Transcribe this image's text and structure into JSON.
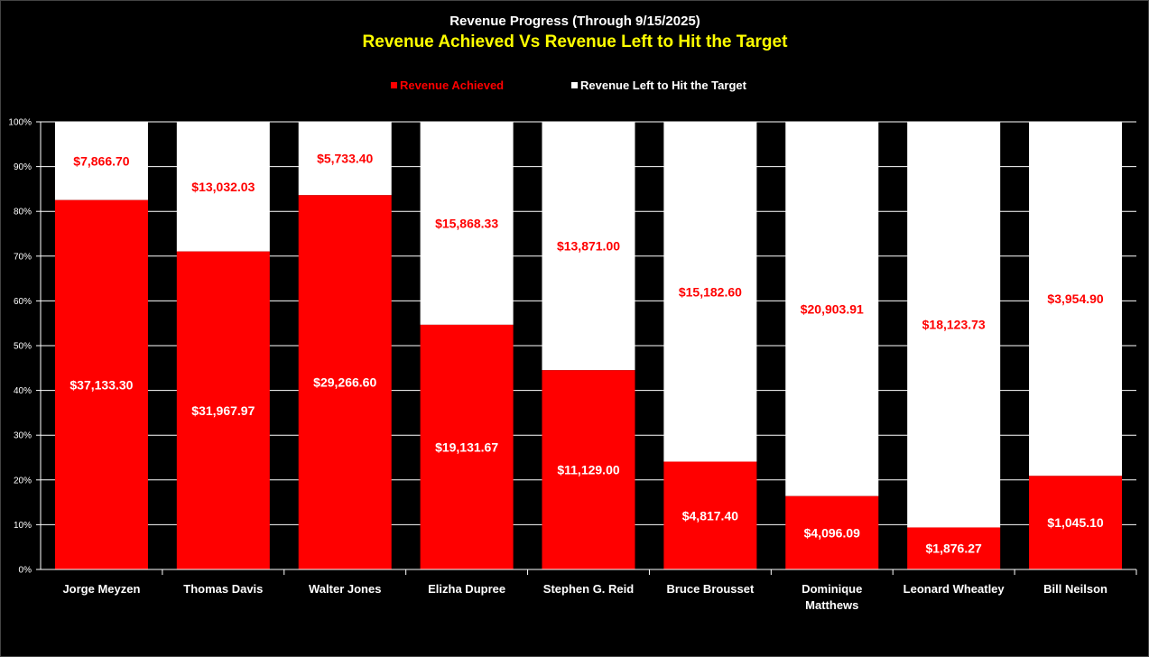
{
  "chart_data": {
    "type": "bar",
    "stacked": "percent",
    "title": "Revenue Progress (Through 9/15/2025)",
    "subtitle": "Revenue Achieved Vs Revenue Left to Hit the Target",
    "categories": [
      [
        "Jorge Meyzen"
      ],
      [
        "Thomas Davis"
      ],
      [
        "Walter Jones"
      ],
      [
        "Elizha Dupree"
      ],
      [
        "Stephen G. Reid"
      ],
      [
        "Bruce Brousset"
      ],
      [
        "Dominique",
        "Matthews"
      ],
      [
        "Leonard Wheatley"
      ],
      [
        "Bill Neilson"
      ]
    ],
    "series": [
      {
        "name": "Revenue Achieved",
        "color": "#ff0000",
        "label_color": "#ffffff",
        "values": [
          37133.3,
          31967.97,
          29266.6,
          19131.67,
          11129.0,
          4817.4,
          4096.09,
          1876.27,
          1045.1
        ],
        "labels": [
          "$37,133.30",
          "$31,967.97",
          "$29,266.60",
          "$19,131.67",
          "$11,129.00",
          "$4,817.40",
          "$4,096.09",
          "$1,876.27",
          "$1,045.10"
        ]
      },
      {
        "name": "Revenue Left to Hit the Target",
        "color": "#ffffff",
        "label_color": "#ff0000",
        "values": [
          7866.7,
          13032.03,
          5733.4,
          15868.33,
          13871.0,
          15182.6,
          20903.91,
          18123.73,
          3954.9
        ],
        "labels": [
          "$7,866.70",
          "$13,032.03",
          "$5,733.40",
          "$15,868.33",
          "$13,871.00",
          "$15,182.60",
          "$20,903.91",
          "$18,123.73",
          "$3,954.90"
        ]
      }
    ],
    "y_ticks": [
      "0%",
      "10%",
      "20%",
      "30%",
      "40%",
      "50%",
      "60%",
      "70%",
      "80%",
      "90%",
      "100%"
    ],
    "ylim": [
      0,
      100
    ],
    "grid": true,
    "legend_position": "top-center",
    "colors": {
      "background": "#000000",
      "subtitle": "#ffff00",
      "grid": "#ffffff"
    }
  }
}
